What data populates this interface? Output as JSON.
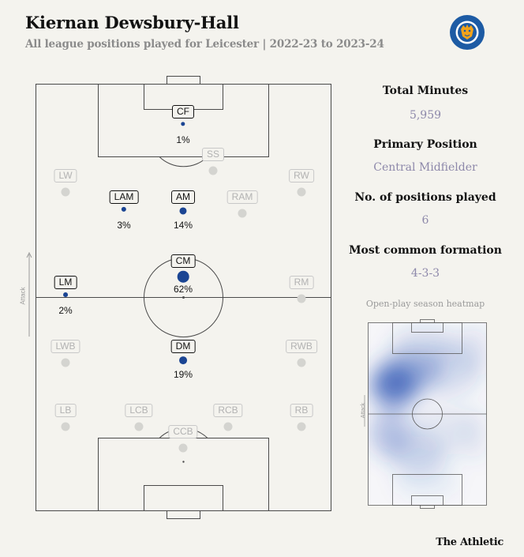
{
  "header": {
    "title": "Kiernan Dewsbury-Hall",
    "subtitle": "All league positions played for Leicester | 2022-23 to 2023-24",
    "logo_text": "LEICESTER CITY FOOTBALL CLUB"
  },
  "pitch": {
    "attack_label": "Attack",
    "positions": [
      {
        "code": "CF",
        "pct": "1%",
        "played": true
      },
      {
        "code": "SS",
        "pct": "",
        "played": false
      },
      {
        "code": "LW",
        "pct": "",
        "played": false
      },
      {
        "code": "RW",
        "pct": "",
        "played": false
      },
      {
        "code": "LAM",
        "pct": "3%",
        "played": true
      },
      {
        "code": "AM",
        "pct": "14%",
        "played": true
      },
      {
        "code": "RAM",
        "pct": "",
        "played": false
      },
      {
        "code": "LM",
        "pct": "2%",
        "played": true
      },
      {
        "code": "CM",
        "pct": "62%",
        "played": true
      },
      {
        "code": "RM",
        "pct": "",
        "played": false
      },
      {
        "code": "LWB",
        "pct": "",
        "played": false
      },
      {
        "code": "DM",
        "pct": "19%",
        "played": true
      },
      {
        "code": "RWB",
        "pct": "",
        "played": false
      },
      {
        "code": "LB",
        "pct": "",
        "played": false
      },
      {
        "code": "LCB",
        "pct": "",
        "played": false
      },
      {
        "code": "RCB",
        "pct": "",
        "played": false
      },
      {
        "code": "RB",
        "pct": "",
        "played": false
      },
      {
        "code": "CCB",
        "pct": "",
        "played": false
      }
    ]
  },
  "stats": {
    "total_minutes_label": "Total Minutes",
    "total_minutes": "5,959",
    "primary_position_label": "Primary Position",
    "primary_position": "Central Midfielder",
    "positions_played_label": "No. of positions played",
    "positions_played": "6",
    "formation_label": "Most common formation",
    "formation": "4-3-3"
  },
  "heatmap": {
    "title": "Open-play season heatmap",
    "attack_label": "Attack"
  },
  "footer": {
    "credit": "The Athletic"
  },
  "colors": {
    "background": "#f4f3ee",
    "played_dot": "#1b4593",
    "unplayed_dot": "#d4d4d0",
    "stat_value": "#8d88aa",
    "heat": "#2c54b4"
  }
}
